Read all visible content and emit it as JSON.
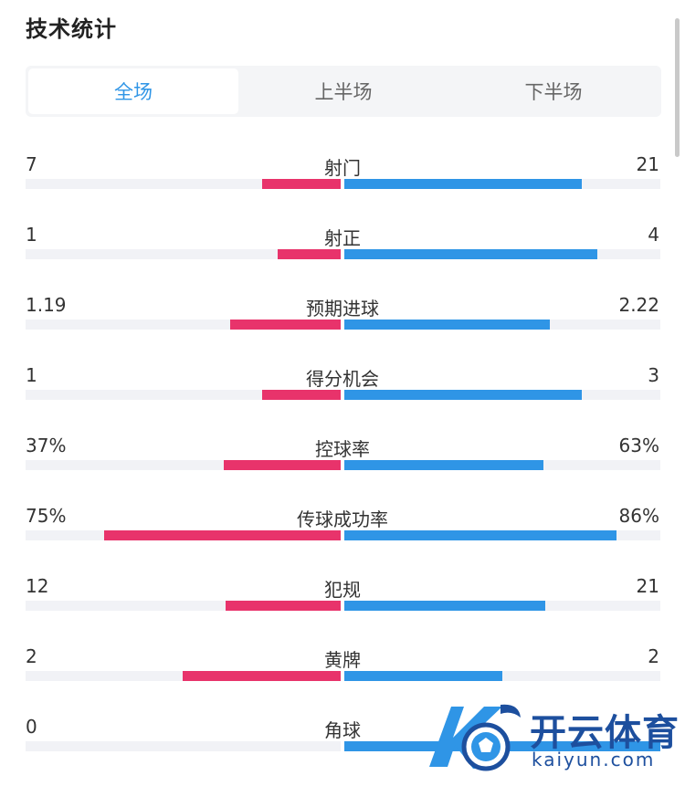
{
  "header": {
    "title": "技术统计"
  },
  "tabs": [
    {
      "label": "全场",
      "active": true
    },
    {
      "label": "上半场",
      "active": false
    },
    {
      "label": "下半场",
      "active": false
    }
  ],
  "colors": {
    "home": "#e8336b",
    "away": "#2f95e6",
    "track": "#f1f2f6",
    "active_tab": "#2f95e6"
  },
  "stats": [
    {
      "label": "射门",
      "home": "7",
      "away": "21",
      "home_fraction": 0.25,
      "away_fraction": 0.75
    },
    {
      "label": "射正",
      "home": "1",
      "away": "4",
      "home_fraction": 0.2,
      "away_fraction": 0.8
    },
    {
      "label": "预期进球",
      "home": "1.19",
      "away": "2.22",
      "home_fraction": 0.35,
      "away_fraction": 0.65
    },
    {
      "label": "得分机会",
      "home": "1",
      "away": "3",
      "home_fraction": 0.25,
      "away_fraction": 0.75
    },
    {
      "label": "控球率",
      "home": "37%",
      "away": "63%",
      "home_fraction": 0.37,
      "away_fraction": 0.63
    },
    {
      "label": "传球成功率",
      "home": "75%",
      "away": "86%",
      "home_fraction": 0.75,
      "away_fraction": 0.86
    },
    {
      "label": "犯规",
      "home": "12",
      "away": "21",
      "home_fraction": 0.364,
      "away_fraction": 0.636
    },
    {
      "label": "黄牌",
      "home": "2",
      "away": "2",
      "home_fraction": 0.5,
      "away_fraction": 0.5
    },
    {
      "label": "角球",
      "home": "0",
      "away": "",
      "home_fraction": 0.0,
      "away_fraction": 1.0
    }
  ],
  "watermark": {
    "brand": "开云体育",
    "domain": "kaiyun.com"
  }
}
